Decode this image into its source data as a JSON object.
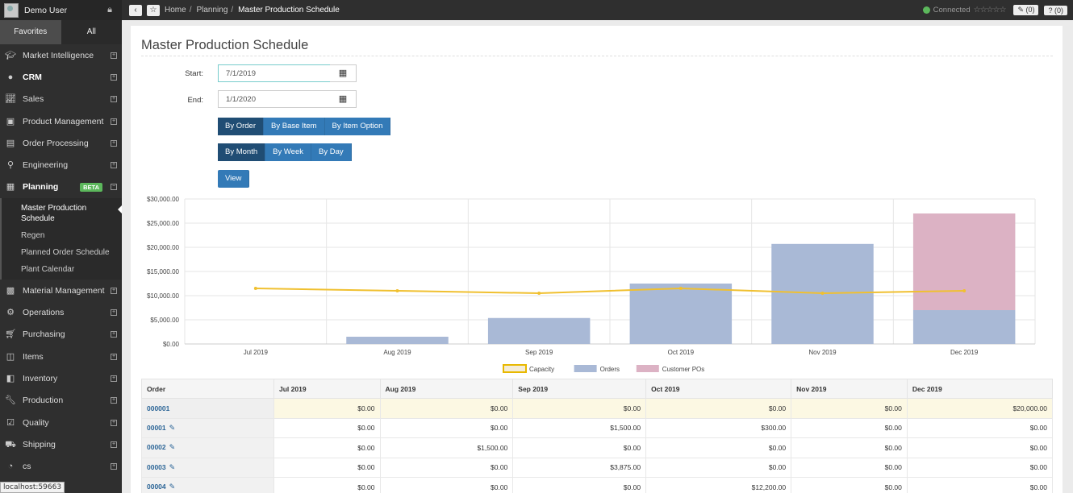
{
  "user": {
    "name": "Demo User"
  },
  "tabs": {
    "favorites": "Favorites",
    "all": "All"
  },
  "nav": [
    {
      "label": "Market Intelligence",
      "icon": "graduation-cap-icon"
    },
    {
      "label": "CRM",
      "icon": "user-icon"
    },
    {
      "label": "Sales",
      "icon": "line-chart-icon"
    },
    {
      "label": "Product Management",
      "icon": "cube-icon"
    },
    {
      "label": "Order Processing",
      "icon": "documents-icon"
    },
    {
      "label": "Engineering",
      "icon": "wrench-link-icon"
    },
    {
      "label": "Planning",
      "icon": "calendar-icon",
      "badge": "BETA"
    }
  ],
  "subnav": [
    "Master Production Schedule",
    "Regen",
    "Planned Order Schedule",
    "Plant Calendar"
  ],
  "nav2": [
    {
      "label": "Material Management",
      "icon": "boxes-icon"
    },
    {
      "label": "Operations",
      "icon": "gears-icon"
    },
    {
      "label": "Purchasing",
      "icon": "cart-icon"
    },
    {
      "label": "Items",
      "icon": "items-icon"
    },
    {
      "label": "Inventory",
      "icon": "inventory-icon"
    },
    {
      "label": "Production",
      "icon": "wrench-icon"
    },
    {
      "label": "Quality",
      "icon": "checkbox-icon"
    },
    {
      "label": "Shipping",
      "icon": "truck-icon"
    },
    {
      "label": "cs",
      "icon": "analytics-icon"
    }
  ],
  "status_bar": "localhost:59663",
  "breadcrumb": {
    "home": "Home",
    "planning": "Planning",
    "current": "Master Production Schedule",
    "sep": "/"
  },
  "topbar": {
    "connected": "Connected",
    "stars": "☆☆☆☆☆",
    "notes": "✎ (0)",
    "help": "? (0)",
    "back": "‹",
    "star": "☆"
  },
  "page": {
    "title": "Master Production Schedule"
  },
  "form": {
    "start_label": "Start:",
    "start_value": "7/1/2019",
    "end_label": "End:",
    "end_value": "1/1/2020",
    "group_by": [
      "By Order",
      "By Base Item",
      "By Item Option"
    ],
    "group_active": 0,
    "period": [
      "By Month",
      "By Week",
      "By Day"
    ],
    "period_active": 0,
    "view": "View"
  },
  "colors": {
    "capacity": "#f0c030",
    "orders": "#a9b9d6",
    "customer_pos": "#dcb2c4"
  },
  "chart_data": {
    "type": "bar",
    "stacked": true,
    "categories": [
      "Jul 2019",
      "Aug 2019",
      "Sep 2019",
      "Oct 2019",
      "Nov 2019",
      "Dec 2019"
    ],
    "series": [
      {
        "name": "Orders",
        "type": "bar",
        "values": [
          0,
          1500,
          5375,
          12500,
          20700,
          7000
        ]
      },
      {
        "name": "Customer POs",
        "type": "bar",
        "values": [
          0,
          0,
          0,
          0,
          0,
          20000
        ]
      },
      {
        "name": "Capacity",
        "type": "line",
        "values": [
          11500,
          11000,
          10500,
          11500,
          10500,
          11000
        ]
      }
    ],
    "yticks": [
      "$30,000.00",
      "$25,000.00",
      "$20,000.00",
      "$15,000.00",
      "$10,000.00",
      "$5,000.00",
      "$0.00"
    ],
    "ylim": [
      0,
      30000
    ],
    "legend": [
      "Capacity",
      "Orders",
      "Customer POs"
    ],
    "legend_position": "bottom",
    "grid": true
  },
  "table": {
    "headers": [
      "Order",
      "Jul 2019",
      "Aug 2019",
      "Sep 2019",
      "Oct 2019",
      "Nov 2019",
      "Dec 2019"
    ],
    "rows": [
      {
        "order": "000001",
        "values": [
          "$0.00",
          "$0.00",
          "$0.00",
          "$0.00",
          "$0.00",
          "$20,000.00"
        ],
        "highlight": true,
        "edit": false
      },
      {
        "order": "00001",
        "values": [
          "$0.00",
          "$0.00",
          "$1,500.00",
          "$300.00",
          "$0.00",
          "$0.00"
        ],
        "edit": true
      },
      {
        "order": "00002",
        "values": [
          "$0.00",
          "$1,500.00",
          "$0.00",
          "$0.00",
          "$0.00",
          "$0.00"
        ],
        "edit": true
      },
      {
        "order": "00003",
        "values": [
          "$0.00",
          "$0.00",
          "$3,875.00",
          "$0.00",
          "$0.00",
          "$0.00"
        ],
        "edit": true
      },
      {
        "order": "00004",
        "values": [
          "$0.00",
          "$0.00",
          "$0.00",
          "$12,200.00",
          "$0.00",
          "$0.00"
        ],
        "edit": true
      }
    ]
  }
}
